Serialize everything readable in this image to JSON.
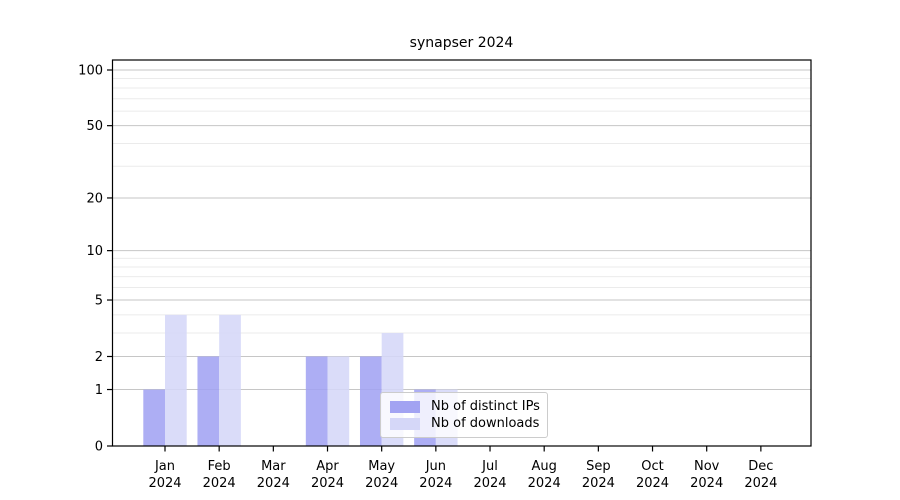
{
  "title": "synapser 2024",
  "chart_data": {
    "type": "bar",
    "title": "synapser 2024",
    "categories": [
      "Jan 2024",
      "Feb 2024",
      "Mar 2024",
      "Apr 2024",
      "May 2024",
      "Jun 2024",
      "Jul 2024",
      "Aug 2024",
      "Sep 2024",
      "Oct 2024",
      "Nov 2024",
      "Dec 2024"
    ],
    "series": [
      {
        "name": "Nb of distinct IPs",
        "color": "#a2a3f2",
        "values": [
          1,
          2,
          0,
          2,
          2,
          1,
          0,
          0,
          0,
          0,
          0,
          0
        ]
      },
      {
        "name": "Nb of downloads",
        "color": "#d5d7f8",
        "values": [
          4,
          4,
          0,
          2,
          3,
          1,
          0,
          0,
          0,
          0,
          0,
          0
        ]
      }
    ],
    "xlabel": "",
    "ylabel": "",
    "y_scale": "log1p",
    "y_major_ticks": [
      0,
      1,
      2,
      5,
      10,
      20,
      50,
      100
    ],
    "y_minor_gridlines": [
      3,
      4,
      6,
      7,
      8,
      9,
      30,
      40,
      60,
      70,
      80,
      90
    ],
    "ylim": [
      0,
      113
    ],
    "grid": true,
    "legend_position": "lower center"
  },
  "colors": {
    "bar_distinct_ips": "#a2a3f2",
    "bar_downloads": "#d5d7f8",
    "grid_major": "#c6c6c6",
    "grid_minor": "#ebebeb",
    "axis": "#000000",
    "text": "#000000",
    "legend_border": "#cccccc"
  }
}
